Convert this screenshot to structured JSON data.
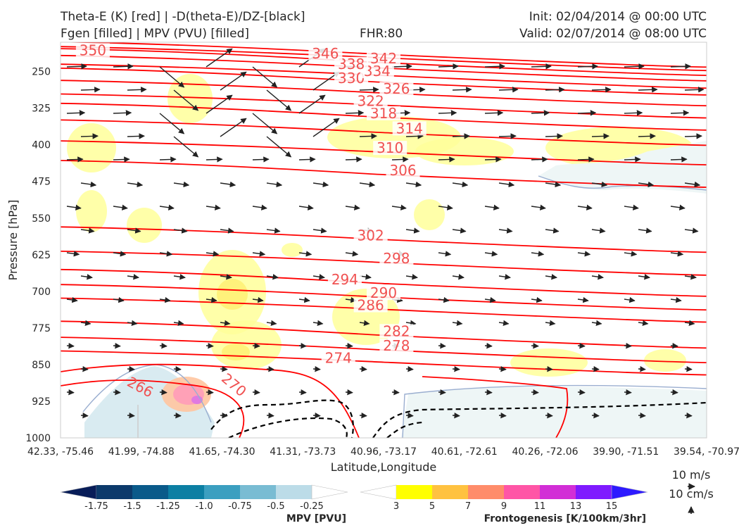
{
  "header": {
    "title_left_1": "Theta-E (K) [red] | -D(theta-E)/DZ-[black]",
    "title_left_2": "Fgen [filled] | MPV (PVU) [filled]",
    "fhr": "FHR:80",
    "init": "Init: 02/04/2014 @ 00:00 UTC",
    "valid": "Valid: 02/07/2014 @ 08:00 UTC"
  },
  "chart_data": {
    "type": "cross-section",
    "ylabel": "Pressure [hPa]",
    "xlabel": "Latitude,Longitude",
    "y_axis": {
      "ticks": [
        250,
        325,
        400,
        475,
        550,
        625,
        700,
        775,
        850,
        925,
        1000
      ],
      "range": [
        1000,
        190
      ],
      "inverted": true
    },
    "x_axis": {
      "ticks": [
        "42.33, -75.46",
        "41.99, -74.88",
        "41.65, -74.30",
        "41.31, -73.73",
        "40.96, -73.17",
        "40.61, -72.61",
        "40.26, -72.06",
        "39.90, -71.51",
        "39.54, -70.97"
      ]
    },
    "theta_e_contours": {
      "color": "#ff0000",
      "labels": [
        {
          "value": "274",
          "pressure": 845,
          "frac": 0.43
        },
        {
          "value": "278",
          "pressure": 820,
          "frac": 0.52
        },
        {
          "value": "282",
          "pressure": 790,
          "frac": 0.52
        },
        {
          "value": "286",
          "pressure": 737,
          "frac": 0.48
        },
        {
          "value": "290",
          "pressure": 712,
          "frac": 0.5
        },
        {
          "value": "294",
          "pressure": 684,
          "frac": 0.44
        },
        {
          "value": "298",
          "pressure": 641,
          "frac": 0.52
        },
        {
          "value": "302",
          "pressure": 594,
          "frac": 0.48
        },
        {
          "value": "306",
          "pressure": 461,
          "frac": 0.53
        },
        {
          "value": "310",
          "pressure": 415,
          "frac": 0.51
        },
        {
          "value": "314",
          "pressure": 375,
          "frac": 0.54
        },
        {
          "value": "318",
          "pressure": 344,
          "frac": 0.5
        },
        {
          "value": "322",
          "pressure": 319,
          "frac": 0.48
        },
        {
          "value": "326",
          "pressure": 294,
          "frac": 0.52
        },
        {
          "value": "330",
          "pressure": 272,
          "frac": 0.45
        },
        {
          "value": "334",
          "pressure": 258,
          "frac": 0.49
        },
        {
          "value": "338",
          "pressure": 243,
          "frac": 0.45
        },
        {
          "value": "342",
          "pressure": 232,
          "frac": 0.5
        },
        {
          "value": "346",
          "pressure": 222,
          "frac": 0.41
        },
        {
          "value": "350",
          "pressure": 215,
          "frac": 0.05
        }
      ],
      "label_274": "274",
      "label_270": "270",
      "label_266": "266"
    },
    "wind_reference": {
      "horizontal": "10 m/s",
      "vertical": "10 cm/s"
    },
    "mpv_colorbar": {
      "label": "MPV [PVU]",
      "ticks": [
        "-1.75",
        "-1.5",
        "-1.25",
        "-1.0",
        "-0.75",
        "-0.5",
        "-0.25"
      ],
      "colors": [
        "#081d58",
        "#0c3a6b",
        "#0a5a8a",
        "#0c7fa3",
        "#3b9fc0",
        "#79bcd3",
        "#bcdce8",
        "#ffffff"
      ]
    },
    "fgen_colorbar": {
      "label": "Frontogenesis [K/100km/3hr]",
      "ticks": [
        "3",
        "5",
        "7",
        "9",
        "11",
        "13",
        "15"
      ],
      "colors": [
        "#ffffff",
        "#ffff00",
        "#ffc240",
        "#ff8c6a",
        "#ff55a6",
        "#d22ed6",
        "#7f1aff",
        "#2d1aff"
      ]
    }
  }
}
